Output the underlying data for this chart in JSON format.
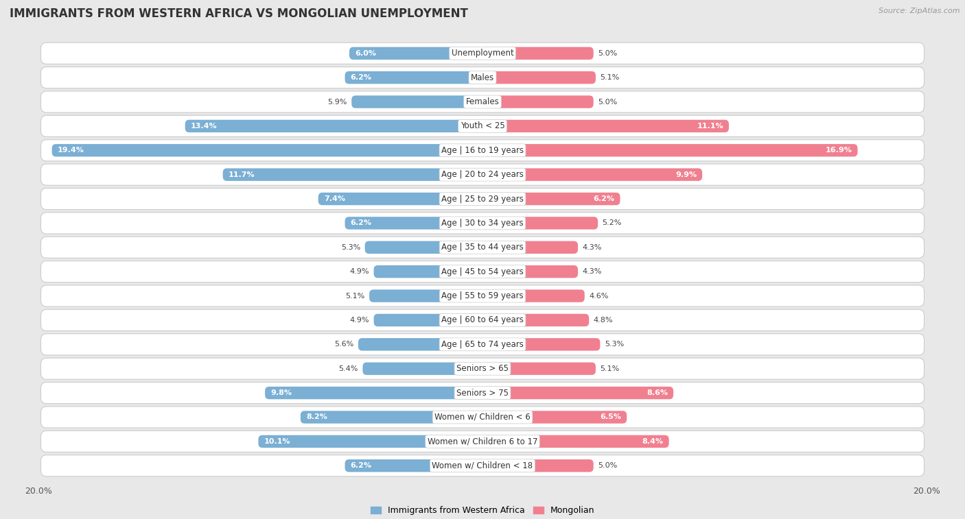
{
  "title": "IMMIGRANTS FROM WESTERN AFRICA VS MONGOLIAN UNEMPLOYMENT",
  "source": "Source: ZipAtlas.com",
  "categories": [
    "Unemployment",
    "Males",
    "Females",
    "Youth < 25",
    "Age | 16 to 19 years",
    "Age | 20 to 24 years",
    "Age | 25 to 29 years",
    "Age | 30 to 34 years",
    "Age | 35 to 44 years",
    "Age | 45 to 54 years",
    "Age | 55 to 59 years",
    "Age | 60 to 64 years",
    "Age | 65 to 74 years",
    "Seniors > 65",
    "Seniors > 75",
    "Women w/ Children < 6",
    "Women w/ Children 6 to 17",
    "Women w/ Children < 18"
  ],
  "left_values": [
    6.0,
    6.2,
    5.9,
    13.4,
    19.4,
    11.7,
    7.4,
    6.2,
    5.3,
    4.9,
    5.1,
    4.9,
    5.6,
    5.4,
    9.8,
    8.2,
    10.1,
    6.2
  ],
  "right_values": [
    5.0,
    5.1,
    5.0,
    11.1,
    16.9,
    9.9,
    6.2,
    5.2,
    4.3,
    4.3,
    4.6,
    4.8,
    5.3,
    5.1,
    8.6,
    6.5,
    8.4,
    5.0
  ],
  "left_color": "#7bafd4",
  "right_color": "#f08090",
  "left_label": "Immigrants from Western Africa",
  "right_label": "Mongolian",
  "axis_max": 20.0,
  "page_bg": "#e8e8e8",
  "row_bg": "#ffffff",
  "row_border": "#cccccc",
  "title_fontsize": 12,
  "source_fontsize": 8,
  "label_fontsize": 8.5,
  "value_fontsize": 8,
  "bar_value_threshold": 3.0
}
